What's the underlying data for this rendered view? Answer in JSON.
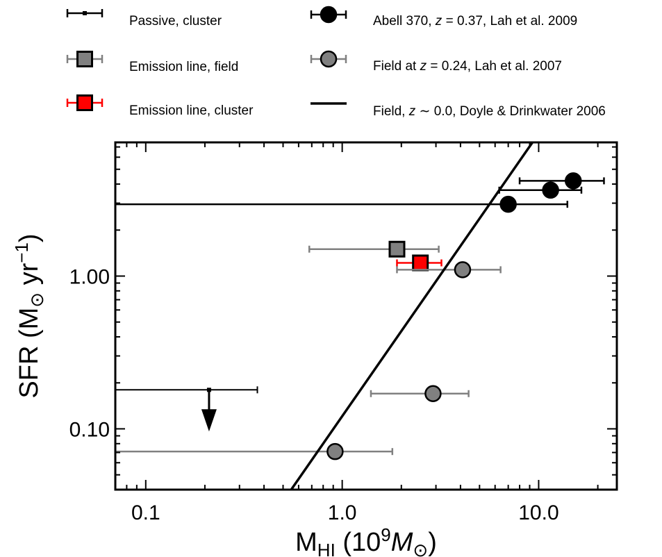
{
  "chart_data": {
    "type": "scatter",
    "xscale": "log",
    "yscale": "log",
    "xlim": [
      0.07,
      25
    ],
    "ylim": [
      0.04,
      7.5
    ],
    "x_ticks": [
      {
        "value": 0.1,
        "label": "0.1"
      },
      {
        "value": 1.0,
        "label": "1.0"
      },
      {
        "value": 10.0,
        "label": "10.0"
      }
    ],
    "y_ticks": [
      {
        "value": 0.1,
        "label": "0.10"
      },
      {
        "value": 1.0,
        "label": "1.00"
      }
    ],
    "xlabel": {
      "main": "M",
      "sub": "HI",
      "open": " (10",
      "sup": "9",
      "unit": "M",
      "unit_sub": "⊙",
      "close": ")"
    },
    "ylabel": {
      "main": "SFR (M",
      "sub": "⊙",
      "mid": " yr",
      "sup": "−1",
      "close": ")"
    },
    "legend": {
      "placement": "top",
      "entries": [
        {
          "text": "Passive, cluster",
          "marker": "small-square",
          "color": "#000000"
        },
        {
          "text": "Emission line, field",
          "marker": "square",
          "color": "#808080"
        },
        {
          "text": "Emission line, cluster",
          "marker": "square",
          "color": "#ff0000"
        },
        {
          "text_parts": [
            "Abell 370, ",
            "z",
            " = 0.37, Lah et al. 2009"
          ],
          "marker": "circle",
          "color": "#000000"
        },
        {
          "text_parts": [
            "Field at ",
            "z",
            " = 0.24, Lah et al. 2007"
          ],
          "marker": "circle",
          "color": "#808080"
        },
        {
          "text_parts": [
            "Field, ",
            "z",
            " ∼ 0.0, Doyle & Drinkwater 2006"
          ],
          "marker": "line",
          "color": "#000000"
        }
      ]
    },
    "series": [
      {
        "name": "Passive, cluster",
        "marker": "upper-limit",
        "color": "#000000",
        "points": [
          {
            "x": 0.21,
            "y": 0.18,
            "xlo": 0.07,
            "xhi": 0.37,
            "upper_limit": true
          }
        ]
      },
      {
        "name": "Emission line, field",
        "marker": "square",
        "color": "#808080",
        "errcolor": "#808080",
        "points": [
          {
            "x": 1.9,
            "y": 1.5,
            "xlo": 0.68,
            "xhi": 3.1
          }
        ]
      },
      {
        "name": "Emission line, cluster",
        "marker": "square",
        "color": "#ff0000",
        "errcolor": "#ff0000",
        "points": [
          {
            "x": 2.5,
            "y": 1.22,
            "xlo": 1.9,
            "xhi": 3.2
          }
        ]
      },
      {
        "name": "Abell 370, z = 0.37, Lah et al. 2009",
        "marker": "circle",
        "color": "#000000",
        "errcolor": "#000000",
        "points": [
          {
            "x": 7.0,
            "y": 2.95,
            "xlo": 0.07,
            "xhi": 14.0
          },
          {
            "x": 11.5,
            "y": 3.65,
            "xlo": 6.3,
            "xhi": 16.5
          },
          {
            "x": 15.0,
            "y": 4.2,
            "xlo": 8.0,
            "xhi": 21.5
          }
        ]
      },
      {
        "name": "Field at z = 0.24, Lah et al. 2007",
        "marker": "circle",
        "color": "#808080",
        "errcolor": "#808080",
        "points": [
          {
            "x": 4.1,
            "y": 1.1,
            "xlo": 1.9,
            "xhi": 6.4
          },
          {
            "x": 2.9,
            "y": 0.17,
            "xlo": 1.4,
            "xhi": 4.4
          },
          {
            "x": 0.92,
            "y": 0.071,
            "xlo": 0.07,
            "xhi": 1.8
          }
        ]
      },
      {
        "name": "Field, z ∼ 0.0, Doyle & Drinkwater 2006",
        "marker": "line",
        "color": "#000000",
        "points": [
          {
            "x": 0.55,
            "y": 0.04
          },
          {
            "x": 9.3,
            "y": 7.5
          }
        ]
      }
    ]
  }
}
